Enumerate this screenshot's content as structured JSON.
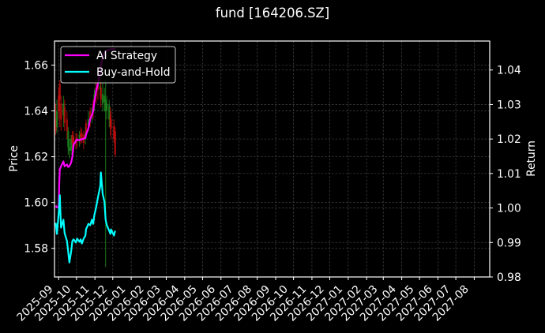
{
  "chart_data": {
    "type": "line",
    "title": "fund [164206.SZ]",
    "xlabel": "",
    "ylabel": "Price",
    "ylabel_right": "Return",
    "xlim": [
      "2025-08-25",
      "2027-08-27"
    ],
    "ylim": [
      1.5675,
      1.6705
    ],
    "ylim_right": [
      0.98,
      1.0484
    ],
    "grid": true,
    "x_ticks": [
      "2025-09",
      "2025-10",
      "2025-11",
      "2025-12",
      "2026-01",
      "2026-02",
      "2026-03",
      "2026-04",
      "2026-05",
      "2026-06",
      "2026-07",
      "2026-08",
      "2026-09",
      "2026-10",
      "2026-11",
      "2026-12",
      "2027-01",
      "2027-02",
      "2027-03",
      "2027-04",
      "2027-05",
      "2027-06",
      "2027-07",
      "2027-08"
    ],
    "y_ticks": [
      "1.58",
      "1.60",
      "1.62",
      "1.64",
      "1.66"
    ],
    "y_ticks_right": [
      "0.98",
      "0.99",
      "1.00",
      "1.01",
      "1.02",
      "1.03",
      "1.04"
    ],
    "legend": {
      "position": "upper left",
      "entries": [
        {
          "label": "AI Strategy",
          "color": "#ff00ff"
        },
        {
          "label": "Buy-and-Hold",
          "color": "#00ffff"
        }
      ]
    },
    "colors": {
      "background": "#000000",
      "axes": "#ffffff",
      "grid": "#3c3c3c",
      "candle_up": "#22a022",
      "candle_down": "#e01010",
      "legend_edge": "#cccccc"
    },
    "candles_fields": [
      "date",
      "open",
      "high",
      "low",
      "close"
    ],
    "candles": [
      [
        "2025-08-27",
        1.6363,
        1.6432,
        1.6295,
        1.6312
      ],
      [
        "2025-08-29",
        1.6329,
        1.6449,
        1.6302,
        1.6398
      ],
      [
        "2025-09-01",
        1.6466,
        1.6501,
        1.6363,
        1.6398
      ],
      [
        "2025-09-03",
        1.6518,
        1.6535,
        1.6329,
        1.6449
      ],
      [
        "2025-09-05",
        1.6432,
        1.6466,
        1.6312,
        1.6363
      ],
      [
        "2025-09-09",
        1.638,
        1.6466,
        1.6329,
        1.6432
      ],
      [
        "2025-09-11",
        1.6415,
        1.6449,
        1.6312,
        1.6346
      ],
      [
        "2025-09-15",
        1.6363,
        1.6398,
        1.6278,
        1.6312
      ],
      [
        "2025-09-17",
        1.6243,
        1.6329,
        1.6209,
        1.6312
      ],
      [
        "2025-09-19",
        1.6226,
        1.6278,
        1.6192,
        1.6243
      ],
      [
        "2025-09-22",
        1.6226,
        1.6295,
        1.6209,
        1.6278
      ],
      [
        "2025-09-24",
        1.6295,
        1.6312,
        1.6226,
        1.626
      ],
      [
        "2025-09-26",
        1.6288,
        1.6312,
        1.6219,
        1.6243
      ],
      [
        "2025-09-30",
        1.6278,
        1.6302,
        1.6233,
        1.626
      ],
      [
        "2025-10-02",
        1.6278,
        1.6302,
        1.624,
        1.6267
      ],
      [
        "2025-10-06",
        1.6267,
        1.6312,
        1.6243,
        1.6295
      ],
      [
        "2025-10-08",
        1.6302,
        1.6329,
        1.6254,
        1.6288
      ],
      [
        "2025-10-10",
        1.6302,
        1.6322,
        1.626,
        1.6278
      ],
      [
        "2025-10-13",
        1.6295,
        1.6312,
        1.6233,
        1.626
      ],
      [
        "2025-10-16",
        1.6278,
        1.6329,
        1.6254,
        1.6302
      ],
      [
        "2025-10-17",
        1.6346,
        1.6363,
        1.6288,
        1.6302
      ],
      [
        "2025-10-21",
        1.6336,
        1.6398,
        1.6312,
        1.6363
      ],
      [
        "2025-10-24",
        1.6398,
        1.6415,
        1.6329,
        1.6363
      ],
      [
        "2025-10-27",
        1.638,
        1.6415,
        1.6346,
        1.6391
      ],
      [
        "2025-10-29",
        1.6432,
        1.6449,
        1.6363,
        1.6398
      ],
      [
        "2025-10-31",
        1.6432,
        1.6494,
        1.6398,
        1.6473
      ],
      [
        "2025-11-03",
        1.6501,
        1.6535,
        1.6432,
        1.6466
      ],
      [
        "2025-11-06",
        1.6518,
        1.6552,
        1.6449,
        1.6494
      ],
      [
        "2025-11-10",
        1.6494,
        1.6535,
        1.6466,
        1.6507
      ],
      [
        "2025-11-11",
        1.6501,
        1.6535,
        1.6415,
        1.6449
      ],
      [
        "2025-11-14",
        1.6432,
        1.6535,
        1.6398,
        1.6473
      ],
      [
        "2025-11-17",
        1.6439,
        1.6501,
        1.6398,
        1.6466
      ],
      [
        "2025-11-19",
        1.6398,
        1.6535,
        1.5718,
        1.6449
      ],
      [
        "2025-11-21",
        1.6404,
        1.6466,
        1.6363,
        1.6432
      ],
      [
        "2025-11-25",
        1.6363,
        1.6449,
        1.6329,
        1.6425
      ],
      [
        "2025-11-27",
        1.638,
        1.6415,
        1.6295,
        1.6329
      ],
      [
        "2025-11-28",
        1.6363,
        1.6398,
        1.6278,
        1.6322
      ],
      [
        "2025-12-03",
        1.6336,
        1.6363,
        1.626,
        1.6278
      ],
      [
        "2025-12-05",
        1.6312,
        1.6329,
        1.6199,
        1.6209
      ]
    ],
    "x": [
      "2025-08-27",
      "2025-08-29",
      "2025-09-01",
      "2025-09-02",
      "2025-09-03",
      "2025-09-04",
      "2025-09-05",
      "2025-09-09",
      "2025-09-11",
      "2025-09-15",
      "2025-09-17",
      "2025-09-19",
      "2025-09-22",
      "2025-09-24",
      "2025-09-26",
      "2025-09-30",
      "2025-10-02",
      "2025-10-06",
      "2025-10-08",
      "2025-10-10",
      "2025-10-13",
      "2025-10-16",
      "2025-10-17",
      "2025-10-21",
      "2025-10-24",
      "2025-10-27",
      "2025-10-29",
      "2025-10-31",
      "2025-11-03",
      "2025-11-06",
      "2025-11-10",
      "2025-11-11",
      "2025-11-14",
      "2025-11-17",
      "2025-11-19",
      "2025-11-21",
      "2025-11-25",
      "2025-11-27",
      "2025-11-28",
      "2025-12-03",
      "2025-12-05"
    ],
    "series": [
      {
        "name": "AI Strategy",
        "axis": "right",
        "color": "#ff00ff",
        "values": [
          1.0007,
          1.0002,
          1.0002,
          1.0075,
          1.0114,
          1.0116,
          1.0121,
          1.0135,
          1.0121,
          1.0126,
          1.0119,
          1.0121,
          1.0132,
          1.0148,
          1.0183,
          1.0194,
          1.0199,
          1.0196,
          1.0199,
          1.0199,
          1.0201,
          1.0203,
          1.0212,
          1.0231,
          1.0258,
          1.0269,
          1.0281,
          1.0308,
          1.0338,
          1.0361,
          1.039,
          1.0413,
          1.0436,
          1.045,
          1.0454,
          1.0457,
          1.0459,
          1.0459,
          1.0461,
          1.0461,
          1.0463
        ]
      },
      {
        "name": "Buy-and-Hold",
        "axis": "right",
        "color": "#00ffff",
        "values": [
          0.9957,
          0.9925,
          0.9984,
          1.001,
          1.0037,
          0.9984,
          0.9943,
          0.9966,
          0.9927,
          0.9904,
          0.9874,
          0.9842,
          0.9874,
          0.9904,
          0.9909,
          0.99,
          0.9911,
          0.9902,
          0.9909,
          0.9897,
          0.9911,
          0.992,
          0.9938,
          0.9954,
          0.995,
          0.9966,
          0.9954,
          0.9979,
          1.0002,
          1.003,
          1.0064,
          1.0103,
          1.0041,
          1.0018,
          0.9966,
          0.995,
          0.9934,
          0.9925,
          0.9938,
          0.992,
          0.9934
        ]
      }
    ]
  }
}
